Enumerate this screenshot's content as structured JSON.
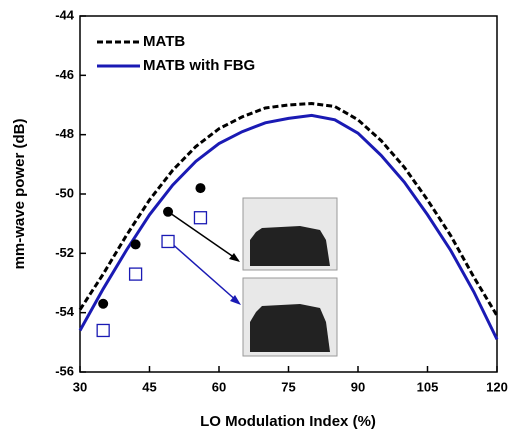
{
  "chart_data": {
    "type": "line",
    "xlabel": "LO Modulation Index (%)",
    "ylabel": "mm-wave power (dB)",
    "x": [
      30,
      35,
      40,
      45,
      50,
      55,
      60,
      65,
      70,
      75,
      80,
      85,
      90,
      95,
      100,
      105,
      110,
      115,
      120
    ],
    "series": [
      {
        "name": "MATB",
        "color": "#000000",
        "dash": true,
        "values": [
          -53.9,
          -52.7,
          -51.4,
          -50.2,
          -49.2,
          -48.4,
          -47.8,
          -47.4,
          -47.1,
          -47.0,
          -46.95,
          -47.05,
          -47.5,
          -48.2,
          -49.1,
          -50.2,
          -51.4,
          -52.8,
          -54.1
        ]
      },
      {
        "name": "MATB with FBG",
        "color": "#1a1ab4",
        "dash": false,
        "values": [
          -54.6,
          -53.2,
          -51.9,
          -50.7,
          -49.7,
          -48.9,
          -48.3,
          -47.9,
          -47.6,
          -47.45,
          -47.35,
          -47.5,
          -47.95,
          -48.7,
          -49.6,
          -50.7,
          -51.9,
          -53.3,
          -54.9
        ]
      }
    ],
    "points": [
      {
        "marker": "circle",
        "color": "#000000",
        "x": [
          35,
          42,
          49,
          56
        ],
        "values": [
          -53.7,
          -51.7,
          -50.6,
          -49.8
        ]
      },
      {
        "marker": "square",
        "color": "#1a1ab4",
        "x": [
          35,
          42,
          49,
          56
        ],
        "values": [
          -54.6,
          -52.7,
          -51.6,
          -50.8
        ]
      }
    ],
    "xlim": [
      30,
      120
    ],
    "xticks": [
      30,
      45,
      60,
      75,
      90,
      105,
      120
    ],
    "ylim": [
      -56,
      -44
    ],
    "yticks": [
      -44,
      -46,
      -48,
      -50,
      -52,
      -54,
      -56
    ],
    "legend": "upper left"
  }
}
